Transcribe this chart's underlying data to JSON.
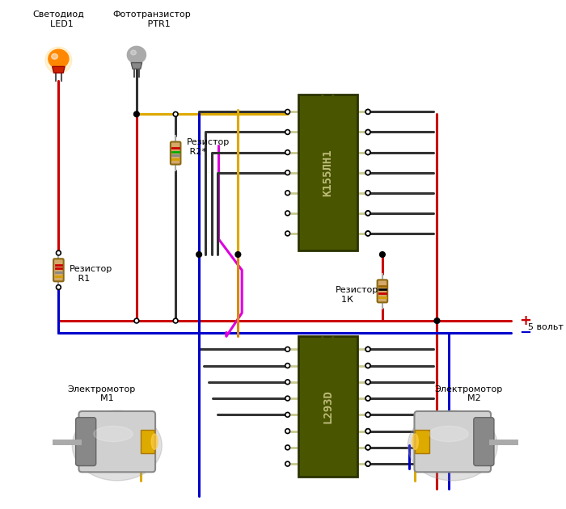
{
  "bg_color": "#ffffff",
  "ic1_label": "К155ЛН1",
  "ic2_label": "L293D",
  "label_led": "Светодиод\n  LED1",
  "label_ptr": "Фототранзистор\n     PTR1",
  "label_r1": "Резистор\n   R1",
  "label_r2": "Резистор\n R2*",
  "label_1k": "Резистор\n  1К",
  "label_m1": "Электромотор\n    М1",
  "label_m2": "Электромотор\n    М2",
  "label_5v": "5 вольт",
  "wire_red": "#cc0000",
  "wire_blue": "#0000cc",
  "wire_yellow": "#ddaa00",
  "wire_magenta": "#dd00dd",
  "wire_orange": "#dd8800",
  "wire_black": "#333333",
  "ic_body_color": "#4a5500",
  "ic_edge_color": "#2a3300",
  "ic_text_color": "#bbbb77",
  "pin_color": "#c8c890",
  "pad_color": "#ffffff",
  "resistor_body": "#d4a96a",
  "resistor_edge": "#8b6914",
  "led_orange": "#ff8800",
  "led_red_base": "#cc2200",
  "ptr_gray": "#aaaaaa",
  "ptr_dark": "#888888",
  "motor_body": "#b8b8b8",
  "motor_light": "#d0d0d0",
  "motor_dark": "#888888",
  "motor_conn": "#ddaa00"
}
